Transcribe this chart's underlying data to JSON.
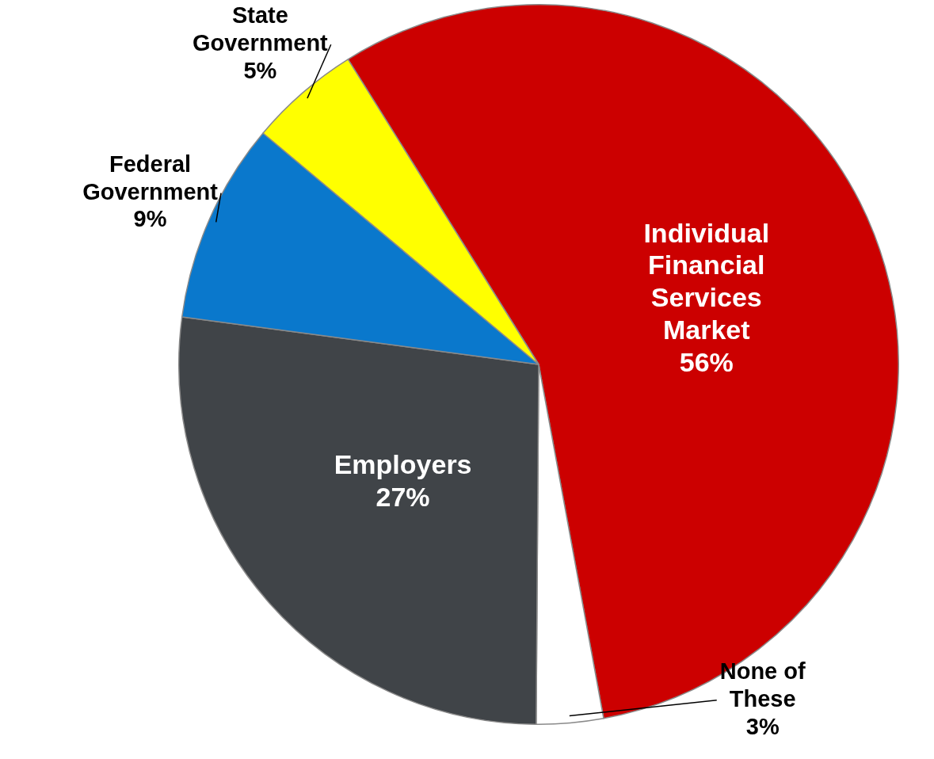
{
  "chart_data": {
    "type": "pie",
    "categories": [
      "Individual Financial Services Market",
      "None of These",
      "Employers",
      "Federal Government",
      "State Government"
    ],
    "values": [
      56,
      3,
      27,
      9,
      5
    ],
    "colors": [
      "#cc0000",
      "#ffffff",
      "#404448",
      "#0a78cc",
      "#ffff00"
    ],
    "value_labels": [
      "56%",
      "3%",
      "27%",
      "9%",
      "5%"
    ],
    "legend": false
  }
}
